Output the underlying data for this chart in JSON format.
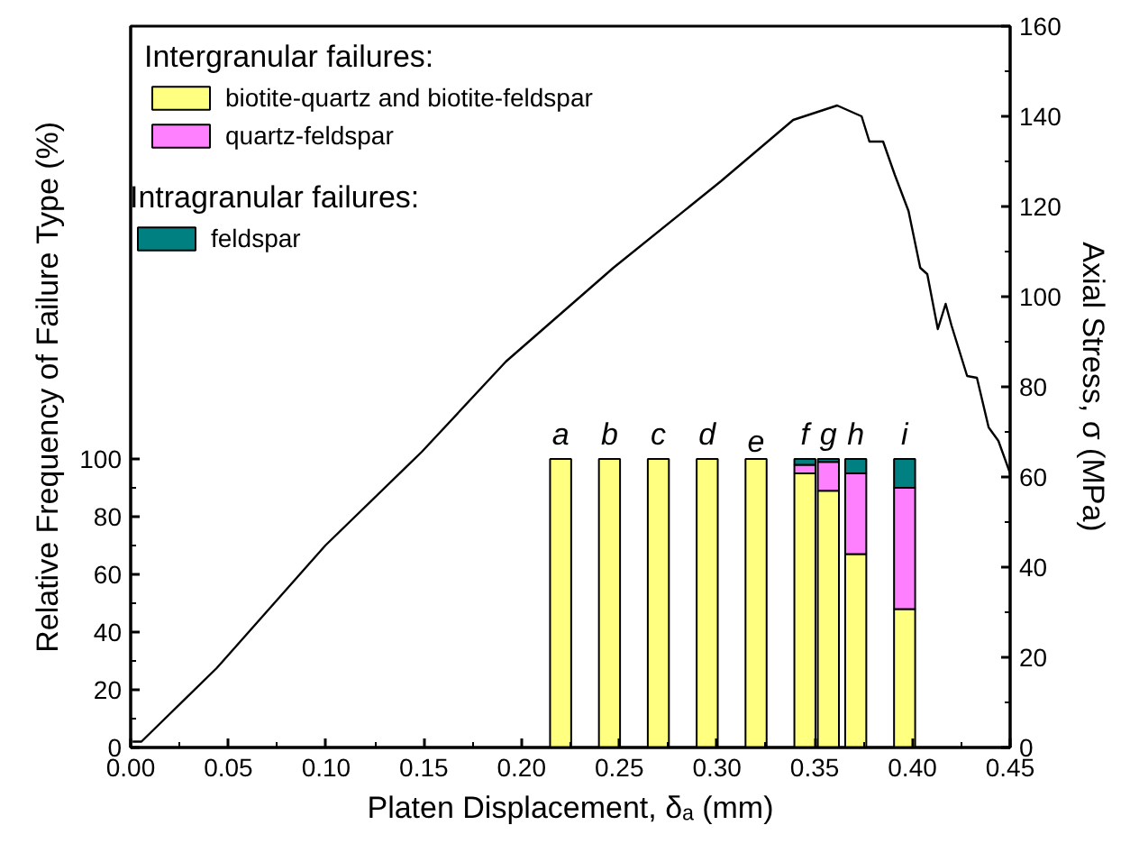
{
  "chart_data": {
    "type": "bar",
    "stacked": true,
    "xlabel": "Platen Displacement, δₐ (mm)",
    "ylabel": "Relative Frequency of Failure Type (%)",
    "y2label": "Axial Stress, σ (MPa)",
    "legend_title": "Intergranular failures:",
    "legend": "top left",
    "grid": false,
    "x": [
      0.22,
      0.245,
      0.27,
      0.295,
      0.32,
      0.345,
      0.357,
      0.371,
      0.396
    ],
    "series": [
      {
        "name": "biotite-quartz and biotite-feldspar",
        "color": "#ffff80",
        "values": [
          100,
          100,
          100,
          100,
          100,
          95,
          89,
          67,
          48
        ]
      },
      {
        "name": "quartz-feldspar",
        "color": "#ff80ff",
        "values": [
          null,
          null,
          null,
          null,
          null,
          3,
          10,
          28,
          42
        ]
      },
      {
        "name": "feldspar",
        "color": "#008080",
        "values": [
          null,
          null,
          null,
          null,
          null,
          2,
          1,
          5,
          10
        ]
      },
      {
        "type": "line",
        "axis": "y2",
        "color": "#000000",
        "x": [
          0.001,
          0.0055,
          0.044,
          0.0996,
          0.149,
          0.192,
          0.247,
          0.302,
          0.339,
          0.3615,
          0.374,
          0.378,
          0.385,
          0.391,
          0.398,
          0.404,
          0.4076,
          0.413,
          0.417,
          0.42,
          0.428,
          0.433,
          0.439,
          0.444,
          0.45
        ],
        "values": [
          1.3,
          1.3,
          17.6,
          44.8,
          65.6,
          85.6,
          106.4,
          125.6,
          139.2,
          142.4,
          140,
          134.4,
          134.4,
          127,
          119,
          106.4,
          105,
          92.8,
          98.4,
          93.6,
          82.4,
          82,
          71,
          68,
          60.8
        ]
      }
    ],
    "annotations": [
      "Intragranular failures:",
      {
        "text": "a",
        "x": 0.22,
        "y": 100
      },
      {
        "text": "b",
        "x": 0.245,
        "y": 100
      },
      {
        "text": "c",
        "x": 0.27,
        "y": 100
      },
      {
        "text": "d",
        "x": 0.295,
        "y": 100
      },
      {
        "text": "e",
        "x": 0.32,
        "y": 100
      },
      {
        "text": "f",
        "x": 0.345,
        "y": 100
      },
      {
        "text": "g",
        "x": 0.357,
        "y": 100
      },
      {
        "text": "h",
        "x": 0.371,
        "y": 100
      },
      {
        "text": "i",
        "x": 0.396,
        "y": 100
      }
    ],
    "xlim": [
      0,
      0.45
    ],
    "xticks": [
      {
        "value": 0,
        "label": "0.00"
      },
      {
        "value": 0.05,
        "label": "0.05"
      },
      {
        "value": 0.1,
        "label": "0.10"
      },
      {
        "value": 0.15,
        "label": "0.15"
      },
      {
        "value": 0.2,
        "label": "0.20"
      },
      {
        "value": 0.25,
        "label": "0.25"
      },
      {
        "value": 0.3,
        "label": "0.30"
      },
      {
        "value": 0.35,
        "label": "0.35"
      },
      {
        "value": 0.4,
        "label": "0.40"
      },
      {
        "value": 0.45,
        "label": "0.45"
      }
    ],
    "ylim": [
      0,
      250
    ],
    "yticks": [
      0,
      20,
      40,
      60,
      80,
      100
    ],
    "y2lim": [
      0,
      160
    ],
    "y2ticks": [
      0,
      20,
      40,
      60,
      80,
      100,
      120,
      140,
      160
    ]
  }
}
